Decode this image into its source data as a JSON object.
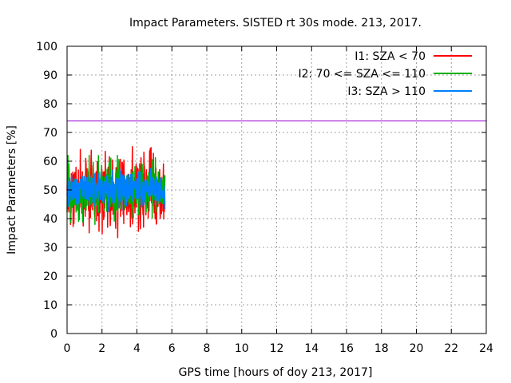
{
  "chart_data": {
    "type": "line",
    "title": "Impact Parameters. SISTED rt 30s mode. 213, 2017.",
    "xlabel": "GPS time [hours of doy 213, 2017]",
    "ylabel": "Impact Parameters [%]",
    "xlim": [
      0,
      24
    ],
    "ylim": [
      0,
      100
    ],
    "x_ticks": [
      0,
      2,
      4,
      6,
      8,
      10,
      12,
      14,
      16,
      18,
      20,
      22,
      24
    ],
    "y_ticks": [
      0,
      10,
      20,
      30,
      40,
      50,
      60,
      70,
      80,
      90,
      100
    ],
    "grid": true,
    "legend_position": "top-right",
    "series": [
      {
        "name": "I1: SZA < 70",
        "color": "#ff0000",
        "x_range": [
          0,
          5.6
        ],
        "center": 50,
        "spread": 20,
        "min": 30,
        "max": 69
      },
      {
        "name": "I2: 70 <= SZA <= 110",
        "color": "#00b000",
        "x_range": [
          0,
          5.6
        ],
        "center": 50,
        "spread": 14,
        "min": 38,
        "max": 62
      },
      {
        "name": "I3: SZA > 110",
        "color": "#0080ff",
        "x_range": [
          0,
          5.6
        ],
        "center": 50,
        "spread": 9,
        "min": 40,
        "max": 61
      }
    ],
    "reference_line": {
      "y": 74,
      "color": "#9400d3"
    }
  }
}
